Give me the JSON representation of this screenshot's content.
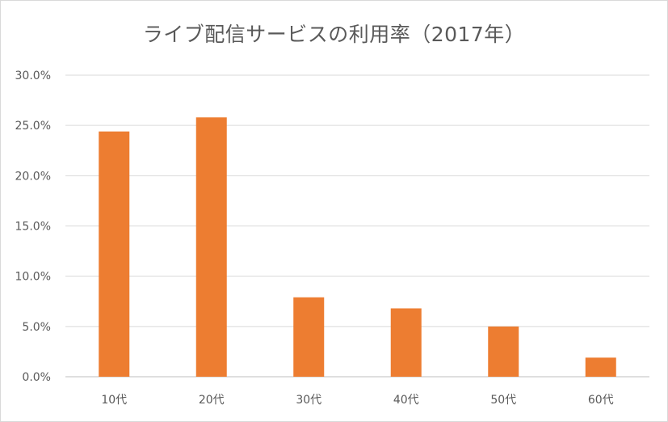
{
  "chart_data": {
    "type": "bar",
    "title": "ライブ配信サービスの利用率（2017年）",
    "xlabel": "",
    "ylabel": "",
    "categories": [
      "10代",
      "20代",
      "30代",
      "40代",
      "50代",
      "60代"
    ],
    "values": [
      24.4,
      25.8,
      7.9,
      6.8,
      5.0,
      1.9
    ],
    "ylim": [
      0,
      30
    ],
    "yticks": [
      0,
      5,
      10,
      15,
      20,
      25,
      30
    ],
    "ytick_labels": [
      "0.0%",
      "5.0%",
      "10.0%",
      "15.0%",
      "20.0%",
      "25.0%",
      "30.0%"
    ],
    "grid": true,
    "legend": "none",
    "bar_color": "#ED7D31",
    "grid_color": "#D9D9D9",
    "text_color": "#595959"
  }
}
